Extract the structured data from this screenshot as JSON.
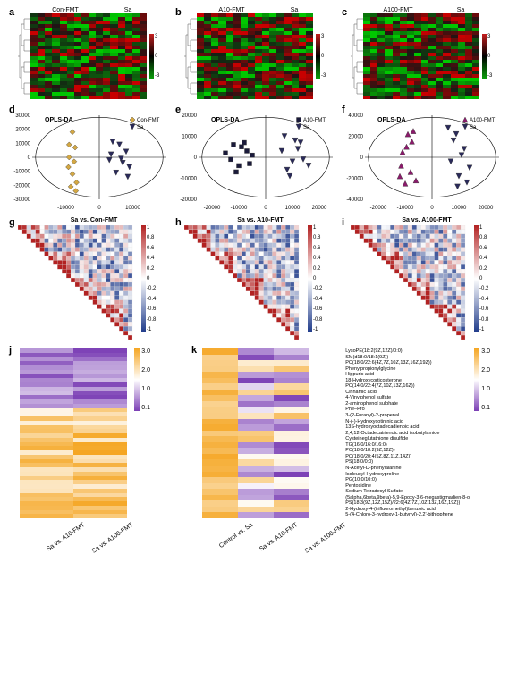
{
  "panels": {
    "a": {
      "label": "a",
      "left": "Con-FMT",
      "right": "Sa",
      "rows": 24,
      "cols": 16,
      "colorbar": {
        "min": -3,
        "mid": 0,
        "max": 3,
        "topColor": "#c41e1e",
        "midColor": "#000",
        "botColor": "#0a9e0a"
      }
    },
    "b": {
      "label": "b",
      "left": "A10-FMT",
      "right": "Sa",
      "rows": 24,
      "cols": 16,
      "colorbar": {
        "min": -3,
        "mid": 0,
        "max": 3,
        "topColor": "#c41e1e",
        "midColor": "#000",
        "botColor": "#0a9e0a"
      }
    },
    "c": {
      "label": "c",
      "left": "A100-FMT",
      "right": "Sa",
      "rows": 24,
      "cols": 16,
      "colorbar": {
        "min": -3,
        "mid": 0,
        "max": 3,
        "topColor": "#c41e1e",
        "midColor": "#000",
        "botColor": "#0a9e0a"
      }
    },
    "d": {
      "label": "d",
      "title": "OPLS-DA",
      "series": [
        {
          "name": "Con-FMT",
          "marker": "diamond",
          "color": "#d4a843"
        },
        {
          "name": "Sa",
          "marker": "triangle-down",
          "color": "#2a2a5a"
        }
      ],
      "xlim": [
        -20000,
        20000
      ],
      "ylim": [
        -30000,
        30000
      ],
      "xticks": [
        -10000,
        0,
        10000
      ],
      "yticks": [
        -30000,
        -20000,
        -10000,
        0,
        10000,
        20000,
        30000
      ],
      "points": {
        "Con-FMT": [
          [
            -8000,
            18000
          ],
          [
            -7200,
            7000
          ],
          [
            -9000,
            9000
          ],
          [
            -7500,
            -3000
          ],
          [
            -9200,
            -7000
          ],
          [
            -8000,
            -12000
          ],
          [
            -6800,
            -18000
          ],
          [
            -8500,
            -21000
          ],
          [
            -7000,
            -24000
          ],
          [
            -9000,
            0
          ]
        ],
        "Sa": [
          [
            4000,
            11000
          ],
          [
            6000,
            9000
          ],
          [
            8000,
            4000
          ],
          [
            3000,
            -2000
          ],
          [
            7000,
            -4000
          ],
          [
            9000,
            -7000
          ],
          [
            5000,
            -11000
          ],
          [
            8500,
            -14000
          ],
          [
            3500,
            2000
          ],
          [
            6500,
            -1000
          ]
        ]
      },
      "label_fontsize": 7
    },
    "e": {
      "label": "e",
      "title": "OPLS-DA",
      "series": [
        {
          "name": "A10-FMT",
          "marker": "square",
          "color": "#1a1a3a"
        },
        {
          "name": "Sa",
          "marker": "triangle-down",
          "color": "#2a2a5a"
        }
      ],
      "xlim": [
        -25000,
        25000
      ],
      "ylim": [
        -20000,
        20000
      ],
      "xticks": [
        -20000,
        -10000,
        0,
        10000,
        20000
      ],
      "yticks": [
        -20000,
        -10000,
        0,
        10000,
        20000
      ],
      "points": {
        "A10-FMT": [
          [
            -9000,
            5000
          ],
          [
            -15000,
            2000
          ],
          [
            -6000,
            -3000
          ],
          [
            -11000,
            -7000
          ],
          [
            -8000,
            7000
          ],
          [
            -13000,
            -1000
          ],
          [
            -5000,
            1000
          ],
          [
            -10000,
            -4000
          ],
          [
            -7000,
            3000
          ],
          [
            -12000,
            6000
          ]
        ],
        "Sa": [
          [
            11000,
            8000
          ],
          [
            6000,
            3000
          ],
          [
            14000,
            -1000
          ],
          [
            8000,
            -6000
          ],
          [
            12000,
            4000
          ],
          [
            16000,
            -4000
          ],
          [
            9000,
            -9000
          ],
          [
            7000,
            10000
          ],
          [
            10000,
            -2000
          ],
          [
            13000,
            7000
          ]
        ]
      },
      "label_fontsize": 7
    },
    "f": {
      "label": "f",
      "title": "OPLS-DA",
      "series": [
        {
          "name": "A100-FMT",
          "marker": "triangle-up",
          "color": "#8b1a6b"
        },
        {
          "name": "Sa",
          "marker": "triangle-down",
          "color": "#2a2a5a"
        }
      ],
      "xlim": [
        -25000,
        25000
      ],
      "ylim": [
        -40000,
        40000
      ],
      "xticks": [
        -20000,
        -10000,
        0,
        10000,
        20000
      ],
      "yticks": [
        -40000,
        -20000,
        0,
        20000,
        40000
      ],
      "points": {
        "A100-FMT": [
          [
            -7000,
            25000
          ],
          [
            -9000,
            22000
          ],
          [
            -11000,
            5000
          ],
          [
            -8000,
            -14000
          ],
          [
            -12000,
            -18000
          ],
          [
            -6000,
            -22000
          ],
          [
            -10000,
            -25000
          ],
          [
            -7500,
            15000
          ],
          [
            -9500,
            10000
          ],
          [
            -11500,
            -8000
          ]
        ],
        "Sa": [
          [
            6000,
            28000
          ],
          [
            9000,
            22000
          ],
          [
            12000,
            8000
          ],
          [
            7000,
            -4000
          ],
          [
            10000,
            -18000
          ],
          [
            13000,
            -24000
          ],
          [
            8000,
            16000
          ],
          [
            11000,
            2000
          ],
          [
            14000,
            -10000
          ],
          [
            9500,
            -28000
          ]
        ]
      },
      "label_fontsize": 7
    },
    "g": {
      "label": "g",
      "title": "Sa vs. Con-FMT",
      "size": 26,
      "colorbar": {
        "min": -1,
        "max": 1,
        "ticks": [
          1,
          0.8,
          0.6,
          0.4,
          0.2,
          0,
          -0.2,
          -0.4,
          -0.6,
          -0.8,
          -1
        ],
        "topColor": "#b22222",
        "midColor": "#ffffff",
        "botColor": "#1e3a8a"
      }
    },
    "h": {
      "label": "h",
      "title": "Sa vs. A10-FMT",
      "size": 26,
      "colorbar": {
        "min": -1,
        "max": 1,
        "ticks": [
          1,
          0.8,
          0.6,
          0.4,
          0.2,
          0,
          -0.2,
          -0.4,
          -0.6,
          -0.8,
          -1
        ],
        "topColor": "#b22222",
        "midColor": "#ffffff",
        "botColor": "#1e3a8a"
      }
    },
    "i": {
      "label": "i",
      "title": "Sa vs. A100-FMT",
      "size": 26,
      "colorbar": {
        "min": -1,
        "max": 1,
        "ticks": [
          1,
          0.8,
          0.6,
          0.4,
          0.2,
          0,
          -0.2,
          -0.4,
          -0.6,
          -0.8,
          -1
        ],
        "topColor": "#b22222",
        "midColor": "#ffffff",
        "botColor": "#1e3a8a"
      }
    },
    "j": {
      "label": "j",
      "xlabels": [
        "Sa vs. A10-FMT",
        "Sa vs. A100-FMT"
      ],
      "rows": 40,
      "cols": 2,
      "colorbar": {
        "ticks": [
          "3.0",
          "2.0",
          "1.0",
          "0.1"
        ],
        "topColor": "#f5a623",
        "botColor": "#7b3fb5"
      }
    },
    "k": {
      "label": "k",
      "xlabels": [
        "Control vs. Sa",
        "Sa vs. A10-FMT",
        "Sa vs. A100-FMT"
      ],
      "rows": 29,
      "cols": 3,
      "colorbar": {
        "ticks": [
          "3.0",
          "2.0",
          "1.0",
          "0.1"
        ],
        "topColor": "#f5a623",
        "botColor": "#7b3fb5"
      },
      "metabolites": [
        "LysoPE(18:2(9Z,12Z)/0:0)",
        "SM(d18:0/18:1(9Z))",
        "PC(18:0/22:6(4Z,7Z,10Z,13Z,16Z,19Z))",
        "Phenylpropionylglycine",
        "Hippuric acid",
        "18-Hydroxycorticosterone",
        "PC(14:0/22:4(7Z,10Z,13Z,16Z))",
        "Cinnamic acid",
        "4-Vinylphenol sulfate",
        "2-aminophenol sulphate",
        "Phe–Pro",
        "3-(2-Furanyl)-2-propenal",
        "N-(-)-Hydroxycotininic acid",
        "13S-hydroxyoctadecadienoic acid",
        "2,4,12-Octadecatrienoic acid isobutylamide",
        "Cysteineglutathione disulfide",
        "TG(16:0/16:0/16:0)",
        "PC(18:0/18:2(9Z,12Z))",
        "PC(18:0/20:4(5Z,8Z,11Z,14Z))",
        "PS(18:0/0:0)",
        "N-Acetyl-D-phenylalanine",
        "Isoleucyl-Hydroxyproline",
        "PG(10:0/10:0)",
        "Pentosidine",
        "Sodium Tetradecyl Sulfate",
        "(5alpha,6beta,9beta)-5,9-Epoxy-3,6-megastigmadien-8-ol",
        "PS(18:3(9Z,12Z,15Z)/22:6(4Z,7Z,10Z,13Z,16Z,19Z))",
        "2-Hydroxy-4-(trifluoromethyl)benzoic acid",
        "5-(4-Chloro-3-hydroxy-1-butynyl)-2,2'-bithiophene"
      ]
    }
  },
  "fontsize_label": 11,
  "fontsize_axis": 6,
  "background": "#ffffff"
}
